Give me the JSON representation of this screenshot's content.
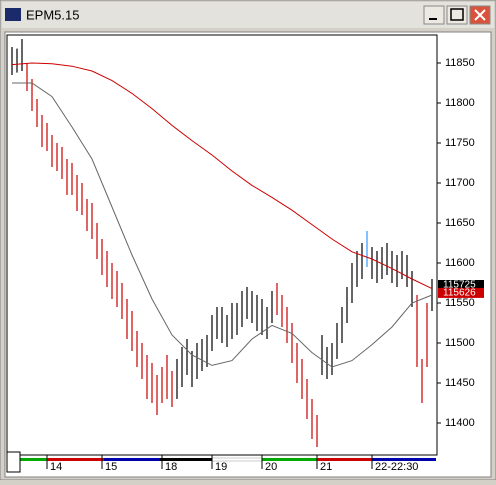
{
  "window_title": "EPM5.15",
  "chart_data": {
    "type": "hlc-bars",
    "x": [
      1,
      2,
      3,
      4,
      5,
      6,
      7,
      8,
      9,
      10,
      11,
      12,
      13,
      14,
      15,
      16,
      17,
      18,
      19,
      20,
      21,
      22,
      23,
      24,
      25,
      26,
      27,
      28,
      29,
      30,
      31,
      32,
      33,
      34,
      35,
      36,
      37,
      38,
      39,
      40,
      41,
      42,
      43,
      44,
      45,
      46,
      47,
      48,
      49,
      50,
      51,
      52,
      53,
      54,
      55,
      56,
      57,
      58,
      59,
      60,
      61,
      62,
      63,
      64,
      65,
      66,
      67,
      68,
      69,
      70,
      71,
      72,
      73,
      74,
      75,
      76,
      77,
      78,
      79,
      80,
      81,
      82,
      83,
      84,
      85
    ],
    "high": [
      11870,
      11868,
      11880,
      11850,
      11830,
      11805,
      11785,
      11775,
      11760,
      11750,
      11745,
      11730,
      11725,
      11710,
      11700,
      11680,
      11675,
      11650,
      11630,
      11615,
      11600,
      11590,
      11575,
      11555,
      11540,
      11515,
      11500,
      11485,
      11475,
      11460,
      11470,
      11485,
      11465,
      11480,
      11495,
      11505,
      11490,
      11500,
      11505,
      11510,
      11535,
      11545,
      11545,
      11535,
      11550,
      11550,
      11565,
      11570,
      11565,
      11560,
      11555,
      11545,
      11565,
      11575,
      11560,
      11545,
      11525,
      11500,
      11480,
      11455,
      11430,
      11410,
      11510,
      11495,
      11500,
      11525,
      11545,
      11570,
      11600,
      11615,
      11625,
      11640,
      11620,
      11615,
      11620,
      11625,
      11615,
      11610,
      11615,
      11610,
      11590,
      11560,
      11480,
      11550,
      11580
    ],
    "low": [
      11835,
      11838,
      11840,
      11815,
      11790,
      11770,
      11745,
      11740,
      11720,
      11715,
      11705,
      11685,
      11685,
      11665,
      11660,
      11640,
      11630,
      11605,
      11585,
      11570,
      11555,
      11545,
      11530,
      11505,
      11490,
      11470,
      11455,
      11430,
      11425,
      11410,
      11425,
      11430,
      11420,
      11430,
      11445,
      11460,
      11445,
      11455,
      11465,
      11470,
      11490,
      11505,
      11500,
      11495,
      11505,
      11510,
      11520,
      11530,
      11525,
      11515,
      11510,
      11505,
      11525,
      11535,
      11520,
      11500,
      11475,
      11450,
      11430,
      11405,
      11380,
      11370,
      11460,
      11455,
      11460,
      11480,
      11500,
      11525,
      11550,
      11570,
      11580,
      11595,
      11580,
      11575,
      11580,
      11585,
      11575,
      11570,
      11580,
      11570,
      11545,
      11470,
      11425,
      11470,
      11540
    ],
    "colors": [
      "#000",
      "#000",
      "#000",
      "#c00",
      "#c00",
      "#c00",
      "#c00",
      "#c00",
      "#c00",
      "#c00",
      "#c00",
      "#c00",
      "#c00",
      "#c00",
      "#c00",
      "#c00",
      "#c00",
      "#c00",
      "#c00",
      "#c00",
      "#c00",
      "#c00",
      "#c00",
      "#c00",
      "#c00",
      "#c00",
      "#c00",
      "#c00",
      "#c00",
      "#c00",
      "#c00",
      "#c00",
      "#c00",
      "#000",
      "#000",
      "#000",
      "#000",
      "#000",
      "#000",
      "#000",
      "#000",
      "#000",
      "#000",
      "#000",
      "#000",
      "#000",
      "#000",
      "#000",
      "#000",
      "#000",
      "#000",
      "#000",
      "#000",
      "#c00",
      "#c00",
      "#c00",
      "#c00",
      "#c00",
      "#c00",
      "#c00",
      "#c00",
      "#c00",
      "#000",
      "#000",
      "#000",
      "#000",
      "#000",
      "#000",
      "#000",
      "#000",
      "#000",
      "#39f",
      "#000",
      "#000",
      "#000",
      "#000",
      "#000",
      "#000",
      "#000",
      "#000",
      "#000",
      "#c00",
      "#c00",
      "#c00",
      "#000"
    ],
    "lines": [
      {
        "color": "#cc0000",
        "x": [
          1,
          5,
          9,
          13,
          17,
          21,
          25,
          29,
          33,
          37,
          41,
          45,
          49,
          53,
          57,
          61,
          65,
          69,
          73,
          77,
          81,
          85
        ],
        "values": [
          11848,
          11850,
          11849,
          11846,
          11840,
          11828,
          11812,
          11793,
          11772,
          11753,
          11735,
          11715,
          11697,
          11682,
          11666,
          11648,
          11630,
          11614,
          11605,
          11593,
          11580,
          11568
        ]
      },
      {
        "color": "#666666",
        "x": [
          1,
          5,
          9,
          13,
          17,
          21,
          25,
          29,
          33,
          37,
          41,
          45,
          49,
          53,
          57,
          61,
          65,
          69,
          73,
          77,
          81,
          85
        ],
        "values": [
          11825,
          11825,
          11808,
          11770,
          11730,
          11670,
          11610,
          11555,
          11510,
          11485,
          11472,
          11478,
          11505,
          11522,
          11512,
          11488,
          11470,
          11478,
          11498,
          11520,
          11550,
          11560
        ]
      }
    ],
    "xlim": [
      0,
      86
    ],
    "xticks": [
      {
        "value": 8,
        "label": "14"
      },
      {
        "value": 19,
        "label": "15"
      },
      {
        "value": 31,
        "label": "18"
      },
      {
        "value": 41,
        "label": "19"
      },
      {
        "value": 51,
        "label": "20"
      },
      {
        "value": 62,
        "label": "21"
      },
      {
        "value": 73,
        "label": "22-22:30"
      }
    ],
    "ylim": [
      11360,
      11885
    ],
    "yticks": [
      11400,
      11450,
      11500,
      11550,
      11600,
      11650,
      11700,
      11750,
      11800,
      11850
    ],
    "price_markers": [
      {
        "value": 11572.5,
        "label": "115725",
        "color": "#000000"
      },
      {
        "value": 11562.6,
        "label": "115626",
        "color": "#cc0000"
      }
    ]
  }
}
